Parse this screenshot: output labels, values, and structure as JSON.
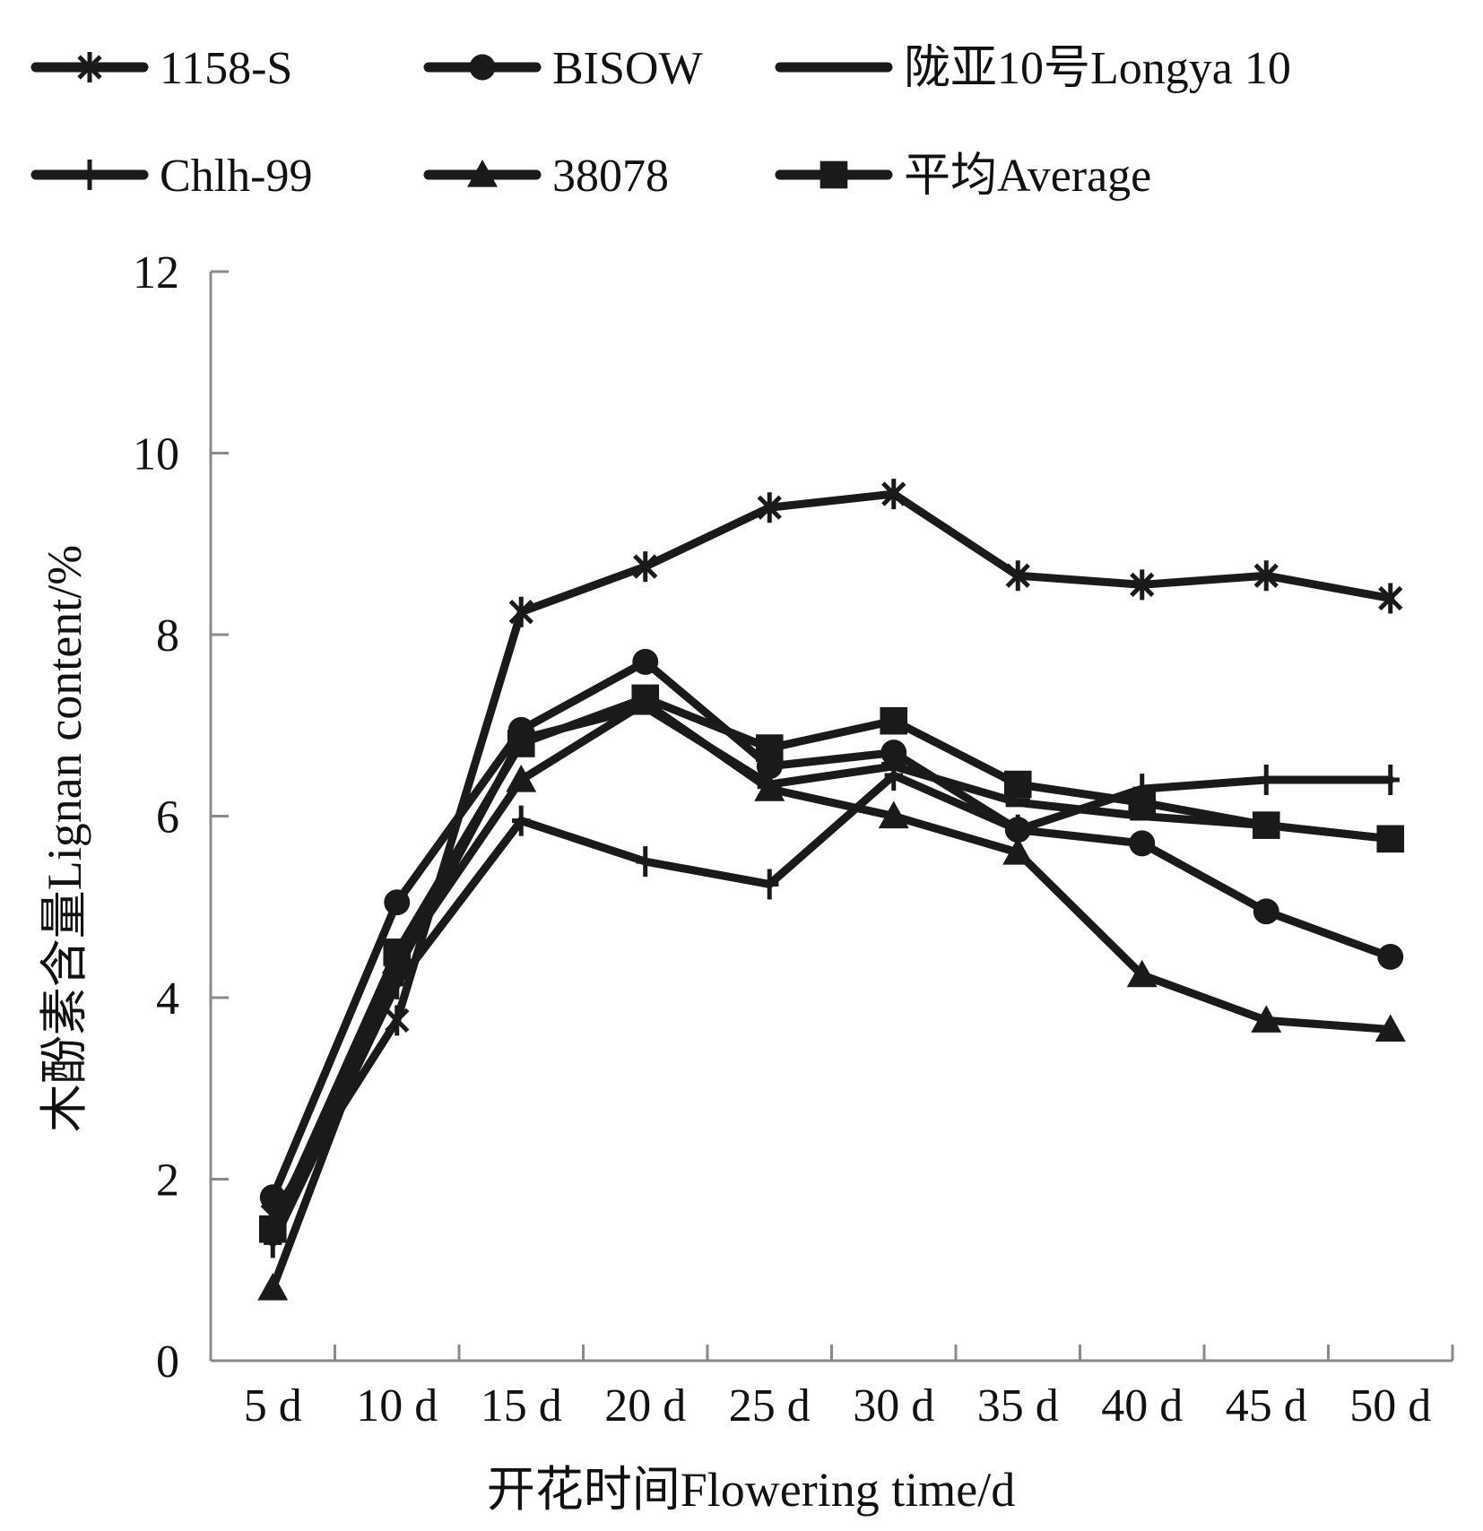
{
  "chart_data": {
    "type": "line",
    "xlabel": "开花时间Flowering time/d",
    "ylabel": "木酚素含量Lignan content/%",
    "categories": [
      "5 d",
      "10 d",
      "15 d",
      "20 d",
      "25 d",
      "30 d",
      "35 d",
      "40 d",
      "45 d",
      "50 d"
    ],
    "ylim": [
      0,
      12
    ],
    "yticks": [
      0,
      2,
      4,
      6,
      8,
      10,
      12
    ],
    "grid": false,
    "legend_position": "top",
    "series": [
      {
        "name": "1158-S",
        "marker": "asterisk",
        "values": [
          1.6,
          3.75,
          8.25,
          8.75,
          9.4,
          9.55,
          8.65,
          8.55,
          8.65,
          8.4
        ]
      },
      {
        "name": "BISOW",
        "marker": "circle",
        "values": [
          1.8,
          5.05,
          6.95,
          7.7,
          6.55,
          6.7,
          5.85,
          5.7,
          4.95,
          4.45
        ]
      },
      {
        "name": "陇亚10号Longya 10",
        "marker": "dash",
        "values": [
          1.5,
          4.3,
          6.85,
          7.2,
          6.35,
          6.55,
          6.15,
          6.0,
          5.9,
          5.75
        ]
      },
      {
        "name": "Chlh-99",
        "marker": "plus",
        "values": [
          1.3,
          4.15,
          5.95,
          5.5,
          5.25,
          6.45,
          5.85,
          6.3,
          6.4,
          6.4
        ]
      },
      {
        "name": "38078",
        "marker": "triangle",
        "values": [
          0.8,
          4.4,
          6.4,
          7.25,
          6.3,
          6.0,
          5.6,
          4.25,
          3.75,
          3.65
        ]
      },
      {
        "name": "平均Average",
        "marker": "square",
        "values": [
          1.45,
          4.5,
          6.8,
          7.3,
          6.75,
          7.05,
          6.35,
          6.15,
          5.9,
          5.75
        ]
      }
    ]
  }
}
